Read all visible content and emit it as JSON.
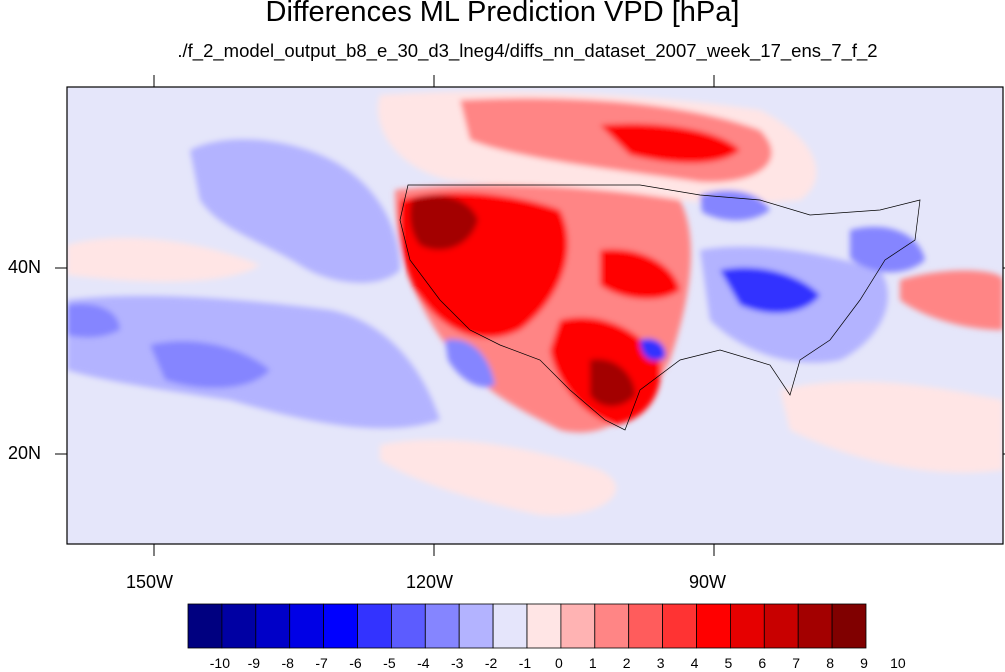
{
  "title": "Differences ML Prediction VPD [hPa]",
  "subtitle": "./f_2_model_output_b8_e_30_d3_lneg4/diffs_nn_dataset_2007_week_17_ens_7_f_2",
  "axes": {
    "lon_labels": [
      "150W",
      "120W",
      "90W"
    ],
    "lat_labels": [
      "40N",
      "20N"
    ]
  },
  "colorbar": {
    "labels": [
      "-10",
      "-9",
      "-8",
      "-7",
      "-6",
      "-5",
      "-4",
      "-3",
      "-2",
      "-1",
      "0",
      "1",
      "2",
      "3",
      "4",
      "5",
      "6",
      "7",
      "8",
      "9",
      "10"
    ],
    "colors": [
      "#000080",
      "#0000a3",
      "#0000c8",
      "#0000e6",
      "#0000ff",
      "#3333ff",
      "#5c5cff",
      "#8585ff",
      "#b3b3ff",
      "#e5e5fb",
      "#ffe5e5",
      "#ffb3b3",
      "#ff8585",
      "#ff5c5c",
      "#ff3333",
      "#ff0000",
      "#e60000",
      "#c80000",
      "#a30000",
      "#800000"
    ]
  },
  "map_palette": {
    "background": "#e5e6fa",
    "neg_light": "#b3b3ff",
    "neg_mid": "#8585ff",
    "neg_strong": "#3333ff",
    "pos_light": "#ffe5e5",
    "pos_mid": "#ff8585",
    "pos_strong": "#ff0000",
    "pos_dark": "#a30000"
  }
}
